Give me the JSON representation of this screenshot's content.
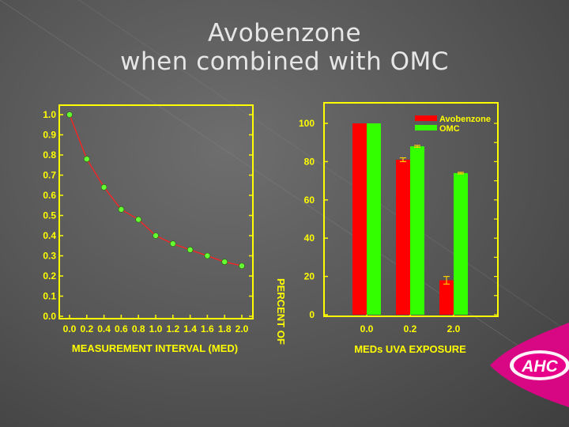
{
  "slide": {
    "title_line1": "Avobenzone",
    "title_line2": "when combined with OMC",
    "logo_text": "AHC"
  },
  "chart_data": [
    {
      "type": "scatter",
      "title": "",
      "xlabel": "MEASUREMENT INTERVAL (MED)",
      "ylabel": "",
      "x": [
        0.0,
        0.2,
        0.4,
        0.6,
        0.8,
        1.0,
        1.2,
        1.4,
        1.6,
        1.8,
        2.0
      ],
      "y": [
        1.0,
        0.78,
        0.64,
        0.53,
        0.48,
        0.4,
        0.36,
        0.33,
        0.3,
        0.27,
        0.25
      ],
      "xlim": [
        0.0,
        2.0
      ],
      "ylim": [
        0.0,
        1.0
      ],
      "x_ticks": [
        "0.0",
        "0.2",
        "0.4",
        "0.6",
        "0.8",
        "1.0",
        "1.2",
        "1.4",
        "1.6",
        "1.8",
        "2.0"
      ],
      "y_ticks": [
        "0.0",
        "0.1",
        "0.2",
        "0.3",
        "0.4",
        "0.5",
        "0.6",
        "0.7",
        "0.8",
        "0.9",
        "1.0"
      ],
      "marker_color": "#66ff33",
      "line_color": "#ff2222",
      "grid": false
    },
    {
      "type": "bar",
      "title": "",
      "xlabel": "MEDs UVA EXPOSURE",
      "ylabel_partial": "PERCENT OF",
      "categories": [
        "0.0",
        "0.2",
        "2.0"
      ],
      "series": [
        {
          "name": "Avobenzone",
          "values": [
            100,
            81,
            18
          ],
          "errors": [
            0,
            1,
            2
          ],
          "color": "#ff0000"
        },
        {
          "name": "OMC",
          "values": [
            100,
            88,
            74
          ],
          "errors": [
            0,
            0.5,
            0.4
          ],
          "color": "#33ff00"
        }
      ],
      "ylim": [
        0,
        105
      ],
      "y_ticks": [
        "0",
        "20",
        "40",
        "60",
        "80",
        "100"
      ],
      "legend": "top-right",
      "grid": false
    }
  ]
}
